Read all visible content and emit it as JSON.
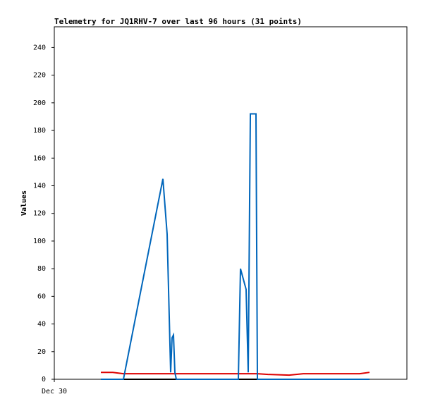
{
  "chart_data": {
    "type": "line",
    "title": "Telemetry for JQ1RHV-7 over last 96 hours (31 points)",
    "ylabel": "Values",
    "x": [
      12.67,
      15.94,
      18.82,
      23.62,
      29.57,
      30.72,
      31.68,
      32.06,
      32.45,
      32.83,
      33.22,
      35.14,
      42.82,
      46.66,
      50.11,
      50.69,
      52.22,
      52.8,
      53.38,
      53.76,
      54.34,
      54.91,
      55.3,
      58.18,
      63.94,
      67.78,
      71.62,
      75.46,
      79.3,
      83.14,
      85.82
    ],
    "xlim": [
      0,
      96
    ],
    "xticks": [
      {
        "value": 0,
        "label": "Dec 30"
      }
    ],
    "ylim": [
      0,
      255
    ],
    "yticks": [
      0,
      20,
      40,
      60,
      80,
      100,
      120,
      140,
      160,
      180,
      200,
      220,
      240
    ],
    "series": [
      {
        "color": "#000000",
        "values": [
          0,
          0,
          0,
          0,
          0,
          0,
          0,
          0,
          0,
          0,
          0,
          0,
          0,
          0,
          0,
          0,
          0,
          0,
          0,
          0,
          0,
          0,
          0,
          0,
          0,
          0,
          0,
          0,
          0,
          0,
          0
        ]
      },
      {
        "color": "#dd0000",
        "values": [
          5,
          5,
          4,
          4,
          4,
          4,
          4,
          4,
          4,
          4,
          4,
          4,
          4,
          4,
          4,
          4,
          4,
          4,
          4,
          4,
          4,
          4,
          4,
          3.5,
          3,
          4,
          4,
          4,
          4,
          4,
          5
        ]
      },
      {
        "color": "#0066bb",
        "values": [
          0,
          0,
          0,
          65,
          145,
          105,
          5,
          30,
          32,
          5,
          0,
          0,
          0,
          0,
          0,
          80,
          65,
          5,
          192,
          192,
          192,
          192,
          0,
          0,
          0,
          0,
          0,
          0,
          0,
          0,
          0
        ]
      }
    ]
  }
}
